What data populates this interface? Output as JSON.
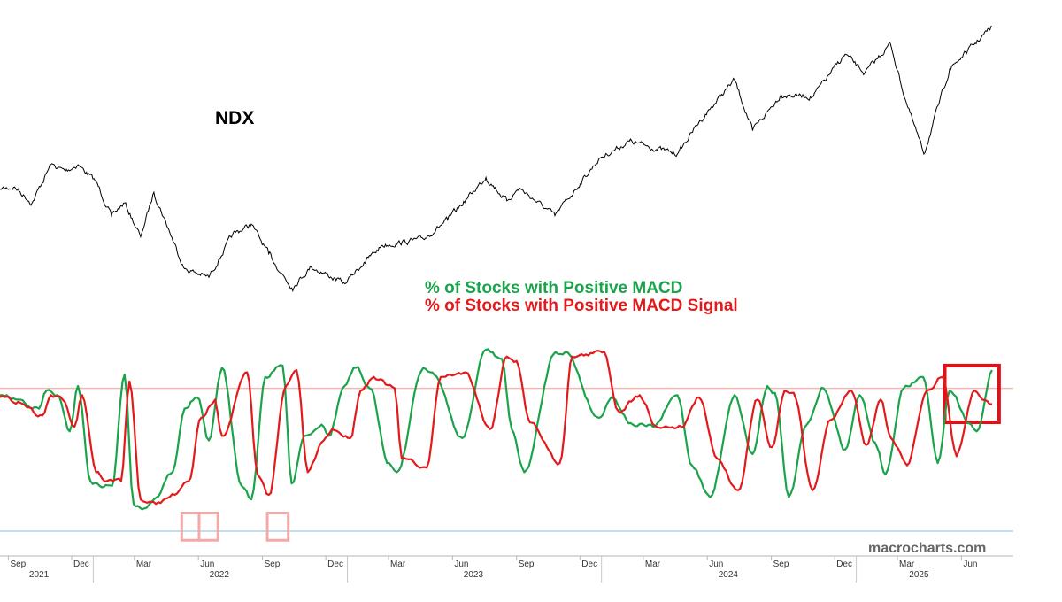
{
  "colors": {
    "ndx": "#000000",
    "macd": "#1aa34a",
    "signal": "#e31a1c",
    "upper_ref": "#f4b6b0",
    "lower_ref": "#a9d6ee",
    "highlight_light": "#f4a9a9",
    "highlight_strong": "#e30f14"
  },
  "watermark": "macrocharts.com",
  "chart_data": [
    {
      "type": "line",
      "title": "NDX",
      "x_range": [
        "2021-08-20",
        "2025-07-15"
      ],
      "x": [
        "2021-08-20",
        "2021-09-10",
        "2021-10-05",
        "2021-11-01",
        "2021-11-22",
        "2021-12-10",
        "2022-01-05",
        "2022-01-27",
        "2022-02-15",
        "2022-03-10",
        "2022-03-29",
        "2022-05-12",
        "2022-06-16",
        "2022-07-20",
        "2022-08-16",
        "2022-09-10",
        "2022-10-13",
        "2022-11-10",
        "2022-12-28",
        "2023-01-25",
        "2023-02-20",
        "2023-04-20",
        "2023-05-25",
        "2023-07-19",
        "2023-08-18",
        "2023-09-05",
        "2023-10-26",
        "2023-12-29",
        "2024-02-10",
        "2024-04-19",
        "2024-05-20",
        "2024-07-10",
        "2024-08-05",
        "2024-09-15",
        "2024-10-30",
        "2024-12-16",
        "2025-01-13",
        "2025-02-19",
        "2025-03-13",
        "2025-04-08",
        "2025-05-15",
        "2025-07-15"
      ],
      "y": [
        15350,
        15450,
        14700,
        16500,
        16200,
        16500,
        15700,
        14100,
        14700,
        13100,
        15200,
        11600,
        11200,
        13200,
        13700,
        12300,
        10700,
        11700,
        10900,
        11900,
        12700,
        13000,
        13900,
        15900,
        14800,
        15400,
        14100,
        16800,
        17600,
        17000,
        18500,
        20500,
        18100,
        19800,
        19700,
        21700,
        20800,
        22200,
        19500,
        17000,
        21000,
        23000
      ],
      "ylim": [
        10500,
        23000
      ]
    },
    {
      "type": "line",
      "series": [
        {
          "name": "% of Stocks with Positive MACD",
          "x": [
            "2021-08-20",
            "2021-09-15",
            "2021-10-15",
            "2021-10-26",
            "2021-11-10",
            "2021-11-28",
            "2021-12-10",
            "2021-12-28",
            "2022-01-10",
            "2022-01-28",
            "2022-02-15",
            "2022-02-28",
            "2022-03-15",
            "2022-03-29",
            "2022-04-25",
            "2022-05-12",
            "2022-05-30",
            "2022-06-16",
            "2022-07-05",
            "2022-08-02",
            "2022-08-16",
            "2022-09-05",
            "2022-09-30",
            "2022-10-13",
            "2022-10-31",
            "2022-11-25",
            "2022-12-05",
            "2022-12-28",
            "2023-01-13",
            "2023-02-02",
            "2023-03-02",
            "2023-03-13",
            "2023-04-20",
            "2023-05-03",
            "2023-06-15",
            "2023-07-19",
            "2023-08-11",
            "2023-08-25",
            "2023-09-12",
            "2023-10-27",
            "2023-11-10",
            "2023-12-28",
            "2024-01-15",
            "2024-02-15",
            "2024-03-15",
            "2024-04-19",
            "2024-05-10",
            "2024-06-05",
            "2024-07-10",
            "2024-08-05",
            "2024-08-26",
            "2024-09-06",
            "2024-09-26",
            "2024-10-22",
            "2024-11-15",
            "2024-12-16",
            "2025-01-06",
            "2025-01-28",
            "2025-02-12",
            "2025-03-10",
            "2025-04-07",
            "2025-04-28",
            "2025-05-15",
            "2025-06-15",
            "2025-06-23",
            "2025-07-15"
          ],
          "y": [
            60,
            58,
            54,
            62,
            60,
            44,
            64,
            22,
            20,
            20,
            69,
            12,
            10,
            14,
            26,
            54,
            59,
            40,
            72,
            20,
            14,
            68,
            73,
            21,
            42,
            47,
            42,
            64,
            72,
            63,
            30,
            26,
            72,
            70,
            41,
            80,
            76,
            45,
            26,
            79,
            79,
            50,
            59,
            47,
            46,
            60,
            29,
            15,
            60,
            34,
            64,
            61,
            15,
            47,
            63,
            36,
            60,
            39,
            25,
            63,
            68,
            30,
            62,
            47,
            44,
            71
          ],
          "ylim": [
            0,
            80
          ]
        },
        {
          "name": "% of Stocks with Positive MACD Signal",
          "x": [
            "2021-08-20",
            "2021-09-15",
            "2021-10-20",
            "2021-11-01",
            "2021-11-18",
            "2021-12-05",
            "2021-12-16",
            "2022-01-05",
            "2022-01-20",
            "2022-02-10",
            "2022-02-22",
            "2022-03-10",
            "2022-04-01",
            "2022-04-28",
            "2022-05-18",
            "2022-06-05",
            "2022-06-25",
            "2022-07-05",
            "2022-08-10",
            "2022-08-25",
            "2022-09-10",
            "2022-10-05",
            "2022-10-20",
            "2022-11-05",
            "2022-11-28",
            "2022-12-10",
            "2023-01-05",
            "2023-01-20",
            "2023-02-08",
            "2023-03-10",
            "2023-03-20",
            "2023-04-25",
            "2023-05-15",
            "2023-06-20",
            "2023-07-25",
            "2023-08-18",
            "2023-09-01",
            "2023-09-20",
            "2023-11-02",
            "2023-11-20",
            "2024-01-05",
            "2024-01-25",
            "2024-02-25",
            "2024-03-20",
            "2024-04-25",
            "2024-05-20",
            "2024-06-15",
            "2024-07-15",
            "2024-08-12",
            "2024-09-02",
            "2024-09-20",
            "2024-10-03",
            "2024-10-30",
            "2024-11-25",
            "2024-12-25",
            "2025-01-15",
            "2025-02-05",
            "2025-02-20",
            "2025-03-15",
            "2025-04-12",
            "2025-05-05",
            "2025-05-25",
            "2025-06-20",
            "2025-07-01",
            "2025-07-15"
          ],
          "y": [
            59,
            57,
            51,
            60,
            58,
            46,
            60,
            26,
            22,
            22,
            66,
            14,
            12,
            16,
            22,
            50,
            58,
            42,
            70,
            25,
            16,
            64,
            71,
            26,
            40,
            45,
            41,
            62,
            68,
            63,
            32,
            28,
            68,
            70,
            45,
            77,
            75,
            48,
            30,
            77,
            79,
            53,
            60,
            46,
            46,
            59,
            32,
            18,
            58,
            37,
            62,
            61,
            18,
            49,
            62,
            38,
            58,
            41,
            29,
            62,
            68,
            33,
            62,
            58,
            56
          ],
          "ylim": [
            0,
            80
          ]
        }
      ],
      "legend": [
        "% of Stocks with Positive MACD",
        "% of Stocks with Positive MACD Signal"
      ],
      "legend_position": "top-center",
      "reference_lines": [
        63,
        0
      ],
      "x_tick_labels": [
        "Sep",
        "Dec",
        "Mar",
        "Jun",
        "Sep",
        "Dec",
        "Mar",
        "Jun",
        "Sep",
        "Dec",
        "Mar",
        "Jun",
        "Sep",
        "Dec",
        "Mar",
        "Jun"
      ],
      "x_tick_dates": [
        "2021-09-01",
        "2021-12-01",
        "2022-03-01",
        "2022-06-01",
        "2022-09-01",
        "2022-12-01",
        "2023-03-01",
        "2023-06-01",
        "2023-09-01",
        "2023-12-01",
        "2024-03-01",
        "2024-06-01",
        "2024-09-01",
        "2024-12-01",
        "2025-03-01",
        "2025-06-01"
      ],
      "year_labels": [
        "2021",
        "2022",
        "2023",
        "2024",
        "2025"
      ],
      "year_dates": [
        "2021-07-01",
        "2022-01-01",
        "2023-01-01",
        "2024-01-01",
        "2025-01-01"
      ],
      "year_label_dates": [
        "2021-10-15",
        "2022-07-01",
        "2023-07-01",
        "2024-07-01",
        "2025-04-01"
      ],
      "highlight_boxes": [
        {
          "start": "2022-05-08",
          "end": "2022-06-02",
          "ymin": -4,
          "ymax": 8,
          "style": "light"
        },
        {
          "start": "2022-06-02",
          "end": "2022-06-29",
          "ymin": -4,
          "ymax": 8,
          "style": "light"
        },
        {
          "start": "2022-09-08",
          "end": "2022-10-08",
          "ymin": -4,
          "ymax": 8,
          "style": "light"
        },
        {
          "start": "2025-05-08",
          "end": "2025-07-25",
          "ymin": 48,
          "ymax": 73,
          "style": "strong"
        }
      ]
    }
  ]
}
